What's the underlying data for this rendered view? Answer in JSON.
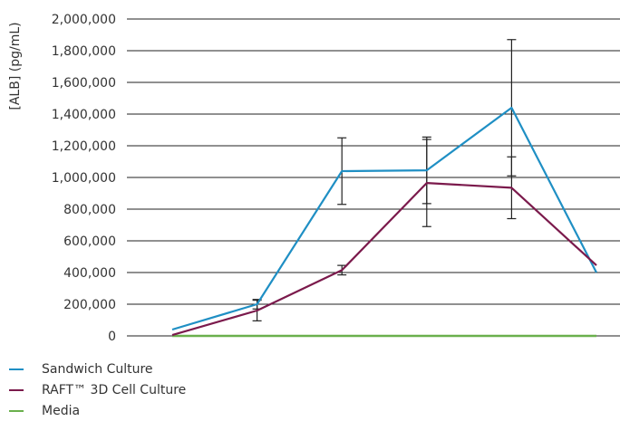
{
  "chart_data": {
    "type": "line",
    "title": "",
    "xlabel": "",
    "ylabel": "[ALB] (pg/mL)",
    "ylim": [
      0,
      2000000
    ],
    "yticks": [
      0,
      200000,
      400000,
      600000,
      800000,
      1000000,
      1200000,
      1400000,
      1600000,
      1800000,
      2000000
    ],
    "ytick_labels": [
      "0",
      "200,000",
      "400,000",
      "600,000",
      "800,000",
      "1,000,000",
      "1,200,000",
      "1,400,000",
      "1,600,000",
      "1,800,000",
      "2,000,000"
    ],
    "x": [
      1,
      2,
      3,
      4,
      5,
      6
    ],
    "grid": "horizontal",
    "legend_position": "bottom-left",
    "series": [
      {
        "name": "Sandwich Culture",
        "color": "#1f8fc4",
        "values": [
          40000,
          200000,
          1040000,
          1045000,
          1440000,
          400000
        ],
        "errors": [
          null,
          30000,
          210000,
          210000,
          430000,
          null
        ]
      },
      {
        "name": "RAFT™ 3D Cell Culture",
        "color": "#7b1a4c",
        "values": [
          5000,
          160000,
          415000,
          965000,
          935000,
          445000
        ],
        "errors": [
          null,
          65000,
          30000,
          275000,
          195000,
          null
        ]
      },
      {
        "name": "Media",
        "color": "#6ab04c",
        "values": [
          0,
          0,
          0,
          0,
          0,
          0
        ],
        "errors": [
          null,
          null,
          null,
          null,
          null,
          null
        ]
      }
    ]
  }
}
